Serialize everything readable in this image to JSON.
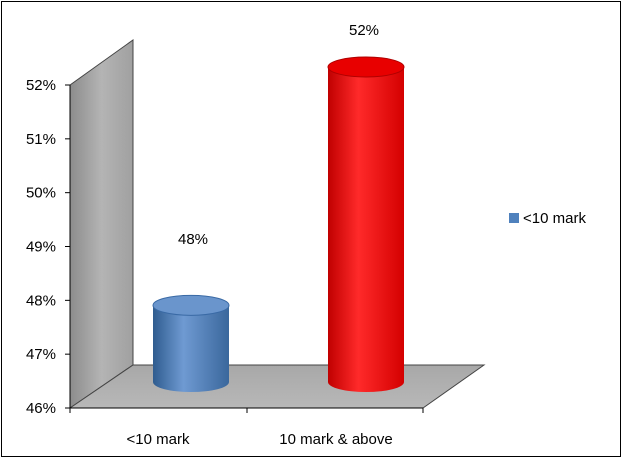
{
  "chart_data": {
    "type": "bar",
    "style": "3d-cylinder",
    "categories": [
      "<10 mark",
      "10 mark & above"
    ],
    "values": [
      48,
      52
    ],
    "value_unit": "%",
    "data_labels": [
      "48%",
      "52%"
    ],
    "bar_colors": [
      "#4f81bd",
      "#ff0000"
    ],
    "ylim": [
      46,
      52
    ],
    "yticks": [
      46,
      47,
      48,
      49,
      50,
      51,
      52
    ],
    "ytick_labels": [
      "46%",
      "47%",
      "48%",
      "49%",
      "50%",
      "51%",
      "52%"
    ],
    "legend": {
      "position": "right",
      "entries": [
        {
          "label": "<10 mark",
          "color": "#4f81bd"
        }
      ]
    },
    "grid": false,
    "title": "",
    "xlabel": "",
    "ylabel": ""
  }
}
